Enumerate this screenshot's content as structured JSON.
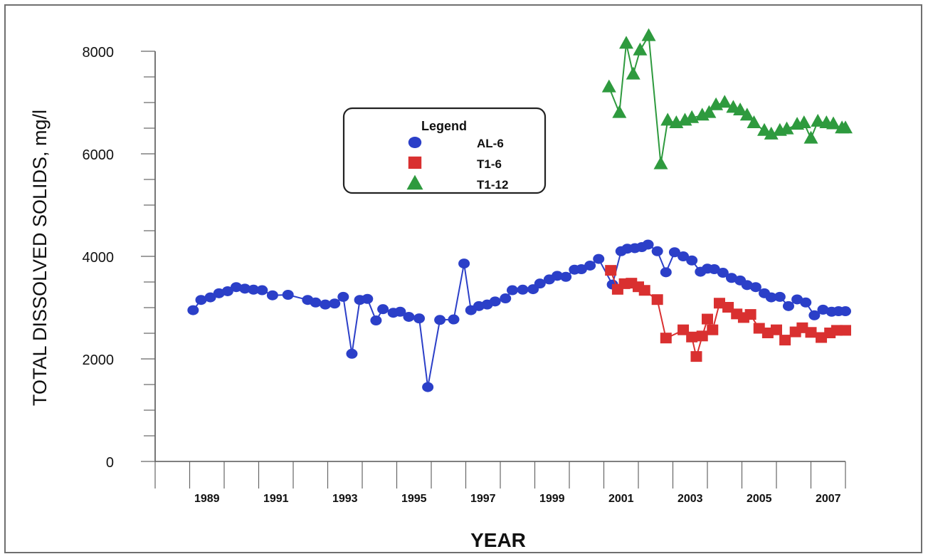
{
  "chart_data": {
    "type": "line",
    "xlabel": "YEAR",
    "ylabel": "TOTAL DISSOLVED SOLIDS, mg/l",
    "xlim": [
      1988,
      2008
    ],
    "ylim": [
      0,
      8000
    ],
    "y_ticks": [
      "0",
      "2000",
      "4000",
      "6000",
      "8000"
    ],
    "y_tick_values": [
      0,
      2000,
      4000,
      6000,
      8000
    ],
    "x_ticks": [
      "1989",
      "1991",
      "1993",
      "1995",
      "1997",
      "1999",
      "2001",
      "2003",
      "2005",
      "2007"
    ],
    "x_tick_values": [
      1989,
      1991,
      1993,
      1995,
      1997,
      1999,
      2001,
      2003,
      2005,
      2007
    ],
    "legend": {
      "title": "Legend",
      "placement": "upper-left-center"
    },
    "series": [
      {
        "name": "AL-6",
        "marker": "circle",
        "color": "#2b3fc8",
        "x": [
          1989.1,
          1989.33,
          1989.6,
          1989.85,
          1990.1,
          1990.35,
          1990.6,
          1990.85,
          1991.1,
          1991.4,
          1991.85,
          1992.42,
          1992.65,
          1992.93,
          1993.2,
          1993.45,
          1993.7,
          1993.93,
          1994.15,
          1994.4,
          1994.6,
          1994.9,
          1995.1,
          1995.35,
          1995.65,
          1995.9,
          1996.25,
          1996.65,
          1996.95,
          1997.15,
          1997.38,
          1997.62,
          1997.85,
          1998.15,
          1998.35,
          1998.65,
          1998.95,
          1999.15,
          1999.42,
          1999.65,
          1999.9,
          2000.15,
          2000.35,
          2000.6,
          2000.85,
          2001.25,
          2001.5,
          2001.68,
          2001.9,
          2002.1,
          2002.28,
          2002.55,
          2002.8,
          2003.05,
          2003.3,
          2003.55,
          2003.8,
          2004.0,
          2004.2,
          2004.45,
          2004.7,
          2004.95,
          2005.15,
          2005.4,
          2005.65,
          2005.85,
          2006.1,
          2006.35,
          2006.6,
          2006.85,
          2007.1,
          2007.35,
          2007.6,
          2007.8,
          2008.0
        ],
        "y": [
          2950,
          3150,
          3200,
          3280,
          3320,
          3400,
          3370,
          3350,
          3340,
          3240,
          3250,
          3150,
          3100,
          3060,
          3080,
          3210,
          2100,
          3150,
          3170,
          2750,
          2970,
          2900,
          2920,
          2820,
          2790,
          1450,
          2760,
          2770,
          3860,
          2950,
          3030,
          3060,
          3120,
          3180,
          3340,
          3350,
          3360,
          3470,
          3550,
          3620,
          3600,
          3740,
          3750,
          3820,
          3950,
          3450,
          4100,
          4150,
          4160,
          4180,
          4230,
          4100,
          3690,
          4080,
          4000,
          3920,
          3700,
          3760,
          3750,
          3680,
          3580,
          3530,
          3440,
          3400,
          3280,
          3200,
          3210,
          3030,
          3160,
          3100,
          2850,
          2960,
          2920,
          2930,
          2930
        ]
      },
      {
        "name": "T1-6",
        "marker": "square",
        "color": "#d93030",
        "x": [
          2001.2,
          2001.4,
          2001.6,
          2001.8,
          2002.0,
          2002.18,
          2002.55,
          2002.8,
          2003.3,
          2003.55,
          2003.68,
          2003.85,
          2004.0,
          2004.15,
          2004.35,
          2004.6,
          2004.85,
          2005.05,
          2005.25,
          2005.5,
          2005.75,
          2006.0,
          2006.25,
          2006.55,
          2006.75,
          2007.0,
          2007.3,
          2007.55,
          2007.75,
          2008.0
        ],
        "y": [
          3720,
          3350,
          3460,
          3470,
          3400,
          3330,
          3150,
          2400,
          2560,
          2420,
          2040,
          2440,
          2770,
          2560,
          3080,
          3000,
          2870,
          2800,
          2860,
          2590,
          2500,
          2560,
          2360,
          2520,
          2600,
          2510,
          2410,
          2500,
          2550,
          2550
        ]
      },
      {
        "name": "T1-12",
        "marker": "triangle",
        "color": "#2e9a3e",
        "x": [
          2001.15,
          2001.45,
          2001.65,
          2001.85,
          2002.05,
          2002.3,
          2002.65,
          2002.85,
          2003.1,
          2003.35,
          2003.55,
          2003.85,
          2004.05,
          2004.25,
          2004.5,
          2004.75,
          2004.95,
          2005.15,
          2005.35,
          2005.65,
          2005.85,
          2006.1,
          2006.3,
          2006.6,
          2006.8,
          2007.0,
          2007.2,
          2007.45,
          2007.65,
          2007.9,
          2008.0
        ],
        "y": [
          7300,
          6800,
          8150,
          7550,
          8020,
          8300,
          5800,
          6650,
          6600,
          6650,
          6700,
          6750,
          6800,
          6950,
          7000,
          6900,
          6850,
          6750,
          6600,
          6450,
          6380,
          6450,
          6480,
          6570,
          6600,
          6300,
          6630,
          6600,
          6580,
          6500,
          6500
        ]
      }
    ]
  }
}
